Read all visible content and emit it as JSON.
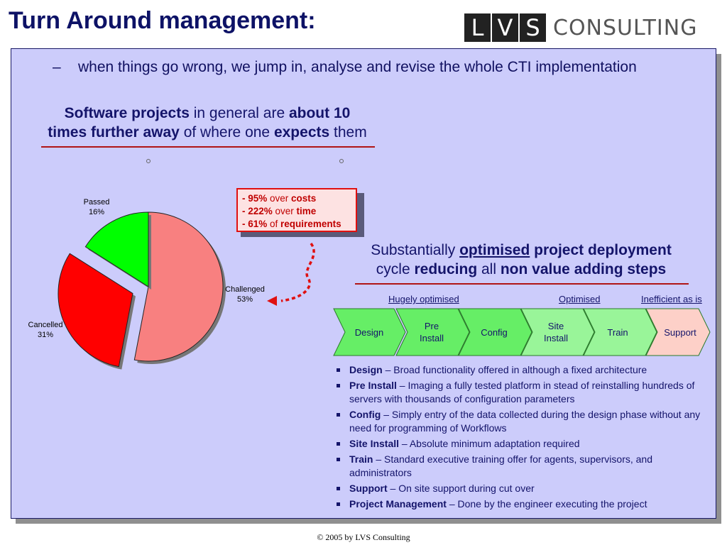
{
  "slide": {
    "title": "Turn Around management:",
    "logo": {
      "letters": [
        "L",
        "V",
        "S"
      ],
      "word": "CONSULTING"
    },
    "intro": {
      "dash": "–",
      "text": "when things go wrong, we jump in, analyse and revise the whole CTI implementation"
    },
    "left_heading": {
      "p1": "Software projects",
      "p2": " in general are ",
      "p3": "about 10",
      "p4": "times further away",
      "p5": " of where one ",
      "p6": "expects",
      "p7": " them"
    },
    "callout": [
      {
        "value": "- 95%",
        "word": " over ",
        "what": "costs"
      },
      {
        "value": "- 222%",
        "word": " over ",
        "what": "time"
      },
      {
        "value": "- 61%",
        "word": " of ",
        "what": "requirements"
      }
    ],
    "right_heading": {
      "p1": "Substantially ",
      "p2": "optimised",
      "p3": " project deployment",
      "p4": "cycle ",
      "p5": "reducing",
      "p6": " all ",
      "p7": "non value adding steps"
    },
    "step_labels": {
      "hugely": "Hugely optimised",
      "optimised": "Optimised",
      "inefficient": "Inefficient as is"
    },
    "steps": [
      {
        "label_1": "Design",
        "label_2": "",
        "color": "#66ee66"
      },
      {
        "label_1": "Pre",
        "label_2": "Install",
        "color": "#66ee66"
      },
      {
        "label_1": "Config",
        "label_2": "",
        "color": "#66ee66"
      },
      {
        "label_1": "Site",
        "label_2": "Install",
        "color": "#99f599"
      },
      {
        "label_1": "Train",
        "label_2": "",
        "color": "#99f599"
      },
      {
        "label_1": "Support",
        "label_2": "",
        "color": "#fdd0c8"
      }
    ],
    "bullets": [
      {
        "term": "Design",
        "text": " – Broad functionality offered in although a fixed architecture"
      },
      {
        "term": "Pre Install",
        "text": " – Imaging a fully tested platform in stead of reinstalling hundreds of servers with thousands of configuration parameters"
      },
      {
        "term": "Config",
        "text": " – Simply entry of the data collected during the design phase without any need for programming of Workflows"
      },
      {
        "term": "Site Install",
        "text": " – Absolute minimum adaptation required"
      },
      {
        "term": "Train",
        "text": " – Standard executive training offer for agents, supervisors, and administrators"
      },
      {
        "term": "Support",
        "text": " – On site support during cut over"
      },
      {
        "term": "Project Management",
        "text": " – Done by the engineer executing the project"
      }
    ],
    "footer": "© 2005 by LVS Consulting"
  },
  "chart_data": {
    "type": "pie",
    "categories": [
      "Challenged",
      "Cancelled",
      "Passed"
    ],
    "values": [
      53,
      31,
      16
    ],
    "labels": [
      "53%",
      "31%",
      "16%"
    ],
    "colors": [
      "#f88080",
      "#ff0000",
      "#00ff00"
    ],
    "exploded": "Cancelled"
  }
}
